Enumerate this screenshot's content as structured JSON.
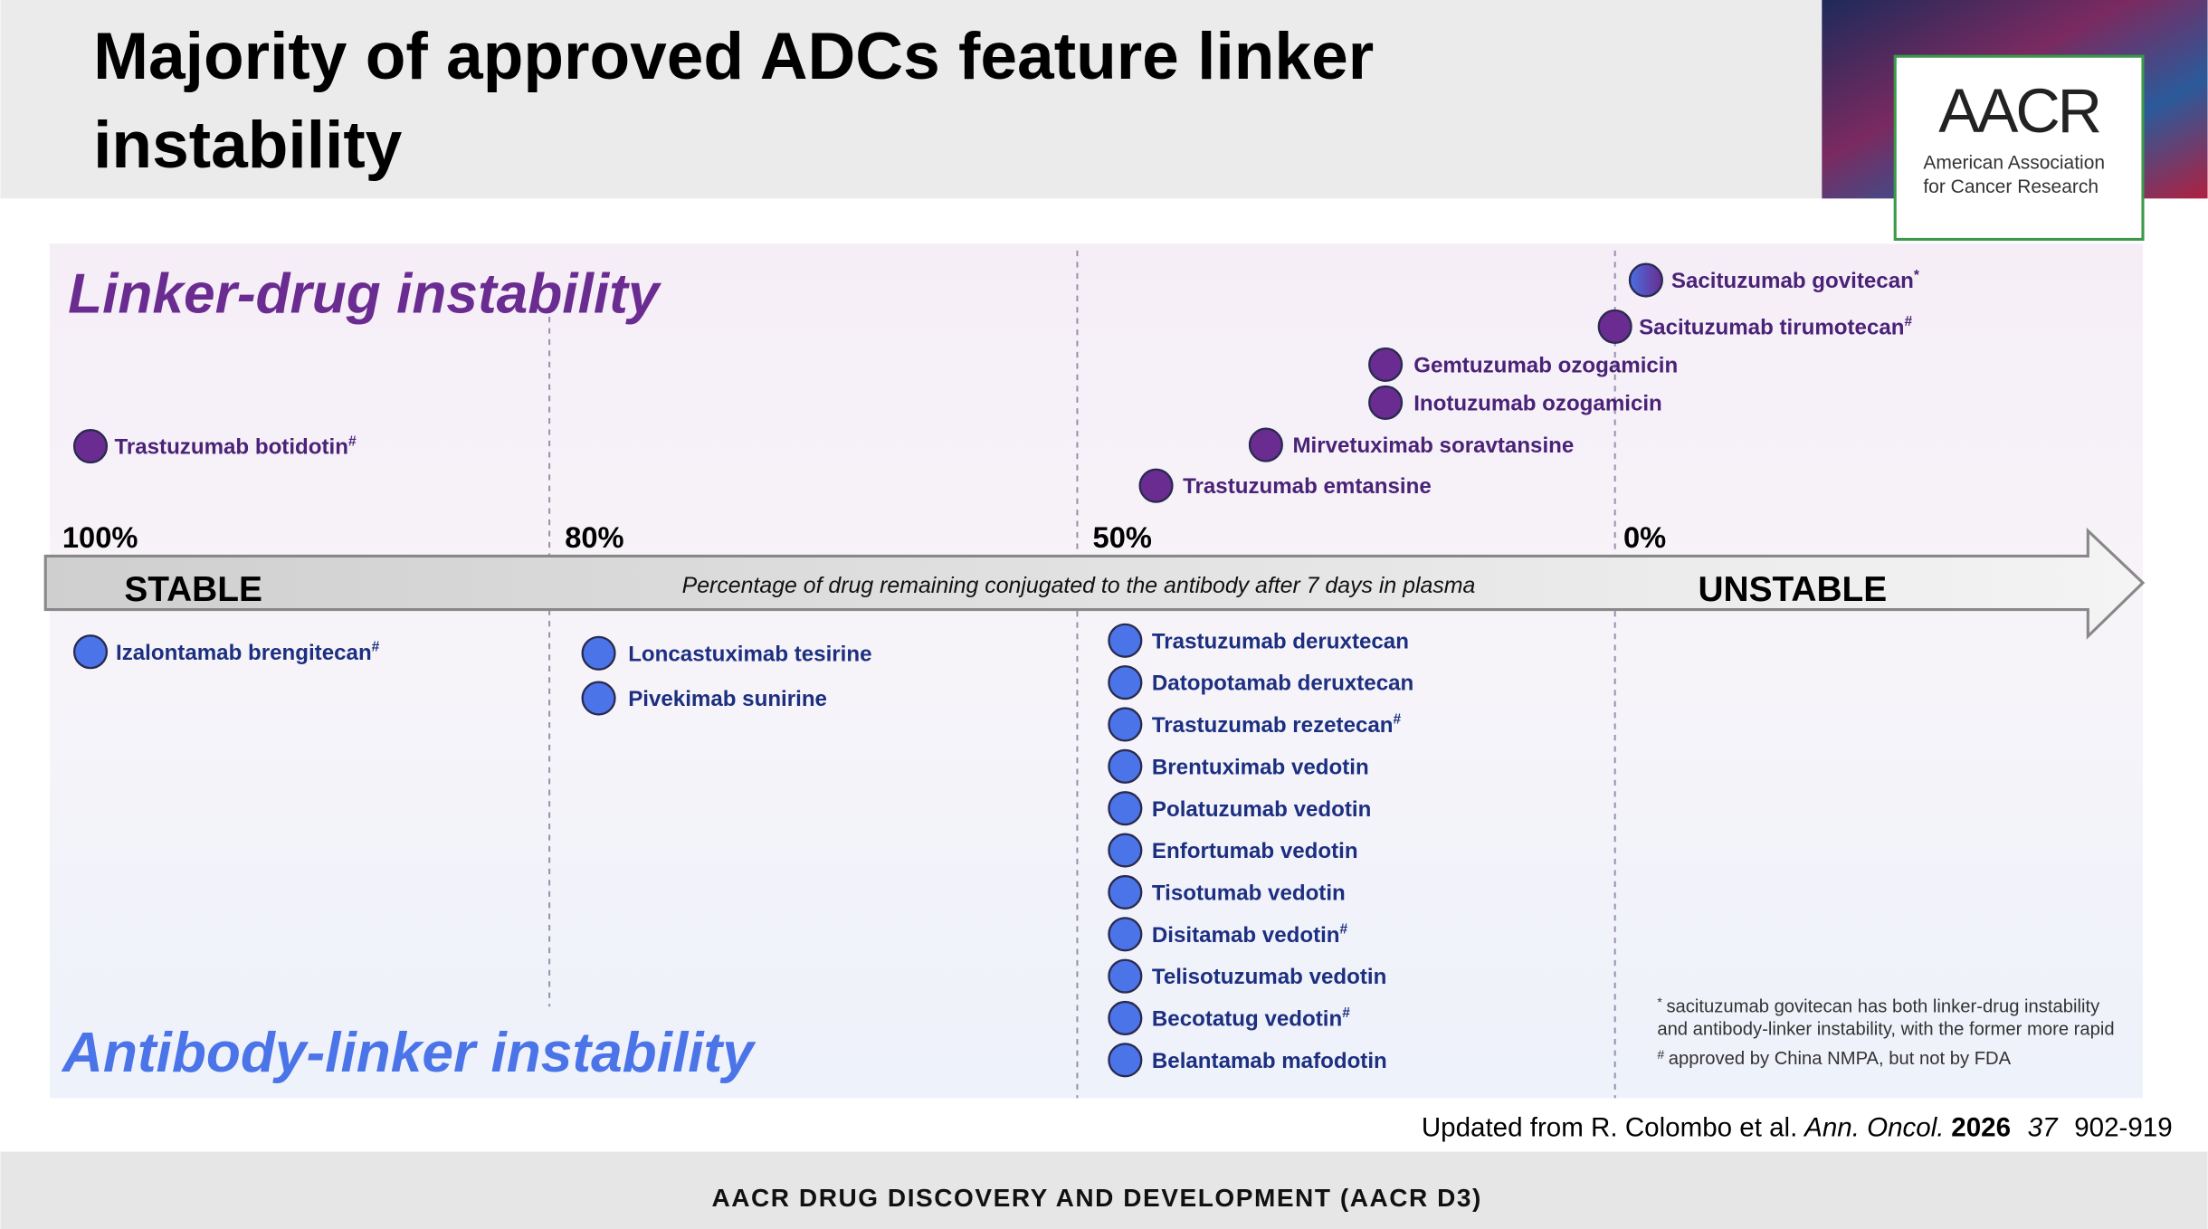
{
  "header": {
    "title_lines": [
      "Majority of approved ADCs feature linker",
      "instability"
    ],
    "logo": {
      "mark": "AACR",
      "name_lines": [
        "American Association",
        "for Cancer Research"
      ]
    }
  },
  "linker_drug": {
    "label": "Linker-drug instability",
    "drugs": [
      {
        "name": "Trastuzumab botidotin",
        "mark": "#"
      },
      {
        "name": "Sacituzumab govitecan",
        "mark": "*"
      },
      {
        "name": "Sacituzumab tirumotecan",
        "mark": "#"
      },
      {
        "name": "Gemtuzumab ozogamicin"
      },
      {
        "name": "Inotuzumab ozogamicin"
      },
      {
        "name": "Mirvetuximab soravtansine"
      },
      {
        "name": "Trastuzumab emtansine"
      }
    ]
  },
  "axis": {
    "ticks": [
      "100%",
      "80%",
      "50%",
      "0%"
    ],
    "left": "STABLE",
    "right": "UNSTABLE",
    "caption": "Percentage of drug remaining conjugated to the antibody after 7 days in plasma"
  },
  "antibody_linker": {
    "label": "Antibody-linker instability",
    "drugs": [
      {
        "name": "Izalontamab brengitecan",
        "mark": "#"
      },
      {
        "name": "Loncastuximab tesirine"
      },
      {
        "name": "Pivekimab sunirine"
      },
      {
        "name": "Trastuzumab deruxtecan"
      },
      {
        "name": "Datopotamab deruxtecan"
      },
      {
        "name": "Trastuzumab rezetecan",
        "mark": "#"
      },
      {
        "name": "Brentuximab vedotin"
      },
      {
        "name": "Polatuzumab vedotin"
      },
      {
        "name": "Enfortumab vedotin"
      },
      {
        "name": "Tisotumab vedotin"
      },
      {
        "name": "Disitamab vedotin",
        "mark": "#"
      },
      {
        "name": "Telisotuzumab vedotin"
      },
      {
        "name": "Becotatug vedotin",
        "mark": "#"
      },
      {
        "name": "Belantamab mafodotin"
      }
    ]
  },
  "footnotes": [
    {
      "mark": "*",
      "lines": [
        "sacituzumab govitecan has both linker-drug instability",
        "and antibody-linker instability, with the former more rapid"
      ]
    },
    {
      "mark": "#",
      "lines": [
        "approved by China NMPA, but not by FDA"
      ]
    }
  ],
  "citation": {
    "prefix": "Updated from R. Colombo et al.",
    "journal": "Ann. Oncol.",
    "year": "2026",
    "volume": "37",
    "pages": "902-919"
  },
  "footer": "AACR DRUG DISCOVERY AND DEVELOPMENT (AACR D3)"
}
